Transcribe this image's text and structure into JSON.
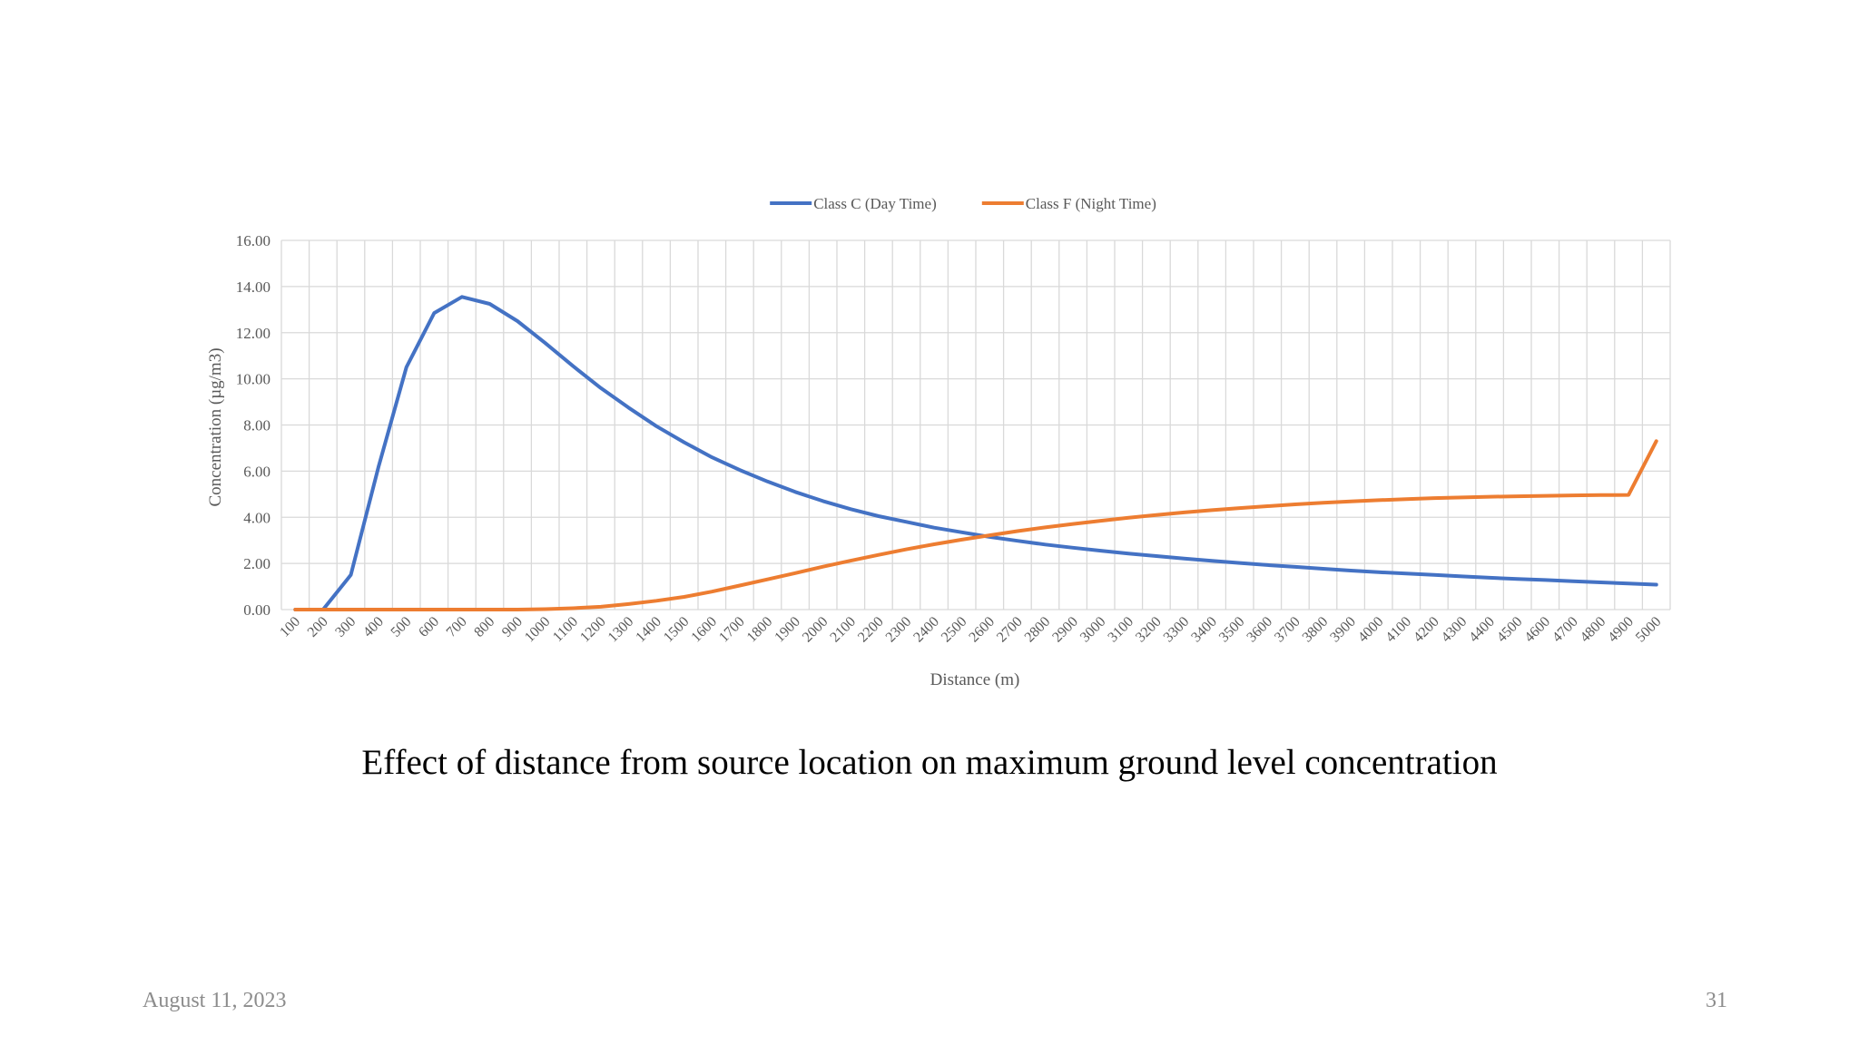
{
  "slide": {
    "caption": "Effect of distance from source location on maximum ground level concentration",
    "date": "August 11, 2023",
    "page_number": "31"
  },
  "chart_data": {
    "type": "line",
    "xlabel": "Distance (m)",
    "ylabel": "Concentration (µg/m3)",
    "ylim": [
      0,
      16
    ],
    "y_ticks": [
      "0.00",
      "2.00",
      "4.00",
      "6.00",
      "8.00",
      "10.00",
      "12.00",
      "14.00",
      "16.00"
    ],
    "grid": true,
    "legend_position": "top",
    "categories": [
      "100",
      "200",
      "300",
      "400",
      "500",
      "600",
      "700",
      "800",
      "900",
      "1000",
      "1100",
      "1200",
      "1300",
      "1400",
      "1500",
      "1600",
      "1700",
      "1800",
      "1900",
      "2000",
      "2100",
      "2200",
      "2300",
      "2400",
      "2500",
      "2600",
      "2700",
      "2800",
      "2900",
      "3000",
      "3100",
      "3200",
      "3300",
      "3400",
      "3500",
      "3600",
      "3700",
      "3800",
      "3900",
      "4000",
      "4100",
      "4200",
      "4300",
      "4400",
      "4500",
      "4600",
      "4700",
      "4800",
      "4900",
      "5000"
    ],
    "series": [
      {
        "name": "Class C (Day Time)",
        "color": "#4472c4",
        "values": [
          0.0,
          0.0,
          1.5,
          6.2,
          10.5,
          12.85,
          13.55,
          13.25,
          12.5,
          11.55,
          10.55,
          9.6,
          8.75,
          7.95,
          7.25,
          6.6,
          6.05,
          5.55,
          5.1,
          4.7,
          4.35,
          4.05,
          3.8,
          3.55,
          3.35,
          3.15,
          2.98,
          2.82,
          2.68,
          2.55,
          2.43,
          2.32,
          2.21,
          2.11,
          2.02,
          1.93,
          1.85,
          1.77,
          1.69,
          1.62,
          1.56,
          1.5,
          1.44,
          1.38,
          1.33,
          1.28,
          1.23,
          1.18,
          1.13,
          1.08
        ]
      },
      {
        "name": "Class F (Night Time)",
        "color": "#ed7d31",
        "values": [
          0.0,
          0.0,
          0.0,
          0.0,
          0.0,
          0.0,
          0.0,
          0.0,
          0.0,
          0.02,
          0.06,
          0.12,
          0.24,
          0.38,
          0.55,
          0.78,
          1.04,
          1.31,
          1.58,
          1.86,
          2.12,
          2.37,
          2.61,
          2.83,
          3.03,
          3.22,
          3.4,
          3.56,
          3.71,
          3.85,
          3.98,
          4.1,
          4.21,
          4.31,
          4.4,
          4.48,
          4.56,
          4.63,
          4.69,
          4.74,
          4.79,
          4.83,
          4.86,
          4.89,
          4.91,
          4.93,
          4.95,
          4.96,
          4.97,
          7.3
        ]
      }
    ]
  }
}
